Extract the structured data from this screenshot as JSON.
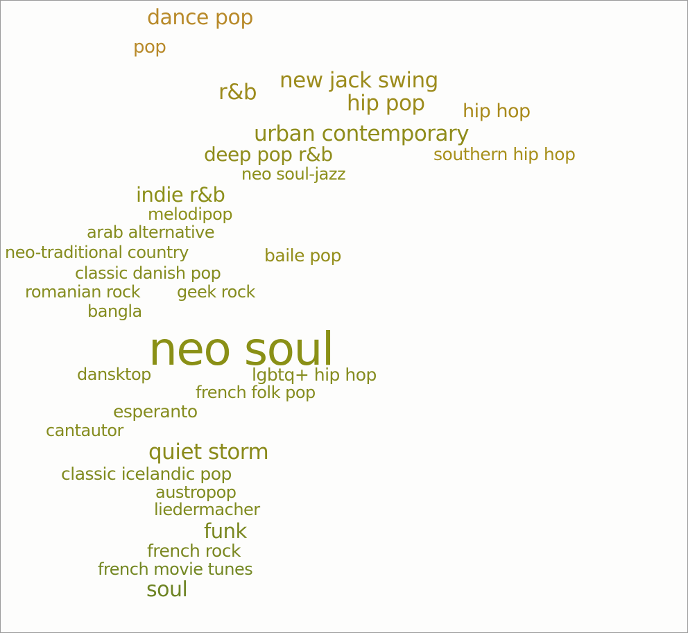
{
  "palette": {
    "orange": "#b88a2a",
    "gold": "#a98a1b",
    "amber": "#a8901c",
    "olive": "#8c8f1a",
    "olive_dark": "#7c8a1e",
    "green": "#6e8424"
  },
  "words": [
    {
      "text": "dance pop",
      "color": "#b88a2a"
    },
    {
      "text": "pop",
      "color": "#b88a2a"
    },
    {
      "text": "r&b",
      "color": "#9c8b1c"
    },
    {
      "text": "new jack swing",
      "color": "#9c8b1c"
    },
    {
      "text": "hip pop",
      "color": "#9c8b1c"
    },
    {
      "text": "hip hop",
      "color": "#a98a1b"
    },
    {
      "text": "urban contemporary",
      "color": "#8f8c1b"
    },
    {
      "text": "deep pop r&b",
      "color": "#8f8c1b"
    },
    {
      "text": "southern hip hop",
      "color": "#a8901c"
    },
    {
      "text": "neo soul-jazz",
      "color": "#8c8f1a"
    },
    {
      "text": "indie r&b",
      "color": "#8c8f1a"
    },
    {
      "text": "melodipop",
      "color": "#8c8f1a"
    },
    {
      "text": "arab alternative",
      "color": "#858c1f"
    },
    {
      "text": "neo-traditional country",
      "color": "#858c1f"
    },
    {
      "text": "baile pop",
      "color": "#948e1b"
    },
    {
      "text": "classic danish pop",
      "color": "#858c1f"
    },
    {
      "text": "romanian rock",
      "color": "#858c1f"
    },
    {
      "text": "geek rock",
      "color": "#858c1f"
    },
    {
      "text": "bangla",
      "color": "#858c1f"
    },
    {
      "text": "neo soul",
      "color": "#8a9016"
    },
    {
      "text": "dansktop",
      "color": "#858c1f"
    },
    {
      "text": "lgbtq+ hip hop",
      "color": "#858c1f"
    },
    {
      "text": "french folk pop",
      "color": "#858c1f"
    },
    {
      "text": "esperanto",
      "color": "#858c1f"
    },
    {
      "text": "cantautor",
      "color": "#858c1f"
    },
    {
      "text": "quiet storm",
      "color": "#8a8a1a"
    },
    {
      "text": "classic icelandic pop",
      "color": "#7f8a1e"
    },
    {
      "text": "austropop",
      "color": "#7f8a1e"
    },
    {
      "text": "liedermacher",
      "color": "#7f8a1e"
    },
    {
      "text": "funk",
      "color": "#7a8720"
    },
    {
      "text": "french rock",
      "color": "#7a8720"
    },
    {
      "text": "french movie tunes",
      "color": "#738722"
    },
    {
      "text": "soul",
      "color": "#6e8424"
    }
  ]
}
